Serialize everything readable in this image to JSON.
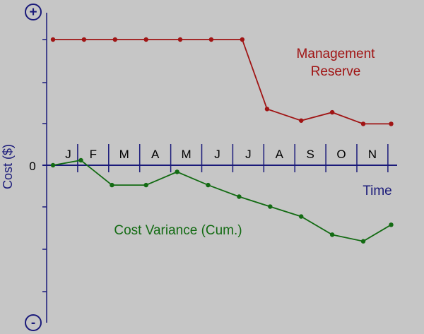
{
  "chart_data": {
    "type": "line",
    "ylabel": "Cost ($)",
    "xlabel": "Time",
    "zero_label": "0",
    "plus_label": "+",
    "minus_label": "-",
    "months": [
      "J",
      "F",
      "M",
      "A",
      "M",
      "J",
      "J",
      "A",
      "S",
      "O",
      "N"
    ],
    "ylim": [
      -100,
      100
    ],
    "series": [
      {
        "name": "Management Reserve",
        "label_lines": [
          "Management",
          "Reserve"
        ],
        "color": "#a01414",
        "x": [
          0,
          1,
          2,
          3,
          4.1,
          5.1,
          6.1,
          6.9,
          8.0,
          9.0,
          10.0,
          10.9
        ],
        "y": [
          76,
          76,
          76,
          76,
          76,
          76,
          76,
          34,
          27,
          32,
          25,
          25
        ]
      },
      {
        "name": "Cost Variance (Cum.)",
        "label_lines": [
          "Cost Variance (Cum.)"
        ],
        "color": "#136b13",
        "x": [
          0,
          0.9,
          1.9,
          3.0,
          4.0,
          5.0,
          6.0,
          7.0,
          8.0,
          9.0,
          10.0,
          10.9
        ],
        "y": [
          0,
          3,
          -12,
          -12,
          -4,
          -12,
          -19,
          -25,
          -31,
          -42,
          -46,
          -36
        ]
      }
    ],
    "grid": false,
    "axis_color": "#1a1a7a",
    "background": "#c6c6c6"
  }
}
